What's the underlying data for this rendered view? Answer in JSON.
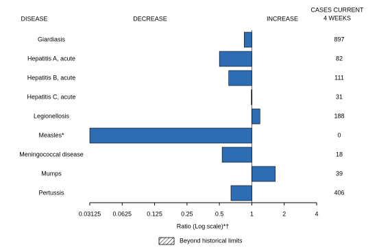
{
  "chart_data": {
    "type": "bar",
    "orientation": "horizontal",
    "category_header": "DISEASE",
    "decrease_label": "DECREASE",
    "increase_label": "INCREASE",
    "cases_header": [
      "CASES CURRENT",
      "4 WEEKS"
    ],
    "categories": [
      "Giardiasis",
      "Hepatitis A, acute",
      "Hepatitis B, acute",
      "Hepatitis C, acute",
      "Legionellosis",
      "Measles*",
      "Meningococcal disease",
      "Mumps",
      "Pertussis"
    ],
    "values": [
      0.85,
      0.5,
      0.61,
      0.99,
      1.19,
      0.03125,
      0.53,
      1.65,
      0.64
    ],
    "cases": [
      897,
      82,
      111,
      31,
      188,
      0,
      18,
      39,
      406
    ],
    "color": "#2e6db4",
    "baseline": 1,
    "xscale": "log",
    "xlim": [
      0.03125,
      4
    ],
    "xticks": [
      0.03125,
      0.0625,
      0.125,
      0.25,
      0.5,
      1,
      2,
      4
    ],
    "xlabel": "Ratio (Log scale)*†",
    "legend": [
      {
        "label": "Beyond historical limits",
        "pattern": "hatch"
      }
    ]
  }
}
